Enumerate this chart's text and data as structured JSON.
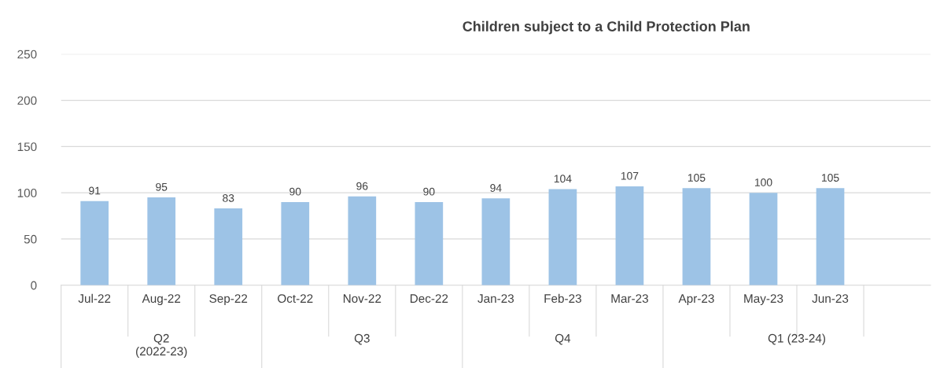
{
  "chart_data": {
    "type": "bar",
    "title": "Children subject to a Child Protection Plan",
    "categories": [
      "Jul-22",
      "Aug-22",
      "Sep-22",
      "Oct-22",
      "Nov-22",
      "Dec-22",
      "Jan-23",
      "Feb-23",
      "Mar-23",
      "Apr-23",
      "May-23",
      "Jun-23",
      null
    ],
    "values": [
      91,
      95,
      83,
      90,
      96,
      90,
      94,
      104,
      107,
      105,
      100,
      105,
      null
    ],
    "color": "#9dc3e6",
    "ylim": [
      0,
      250
    ],
    "yticks": [
      0,
      50,
      100,
      150,
      200,
      250
    ],
    "grid": "y",
    "data_labels": true,
    "annotations": [
      "Q2\n(2022-23)",
      "Q3",
      "Q4",
      "Q1 (23-24)"
    ]
  }
}
